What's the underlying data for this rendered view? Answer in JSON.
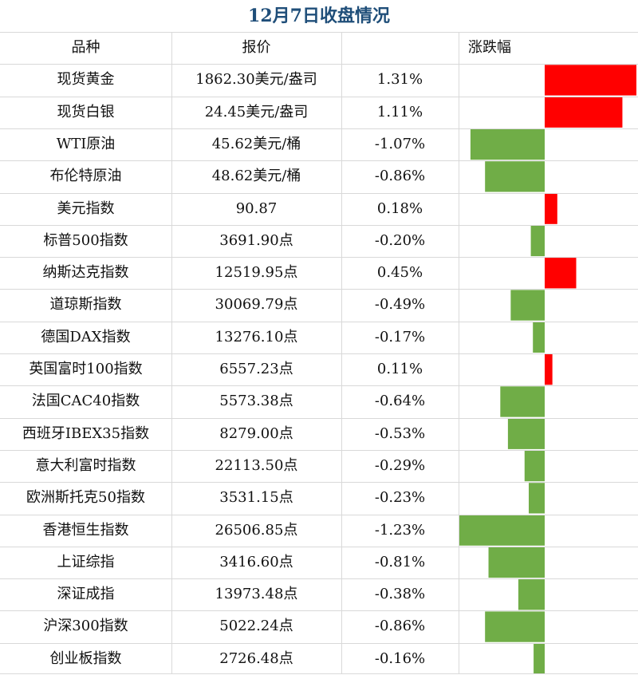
{
  "title": "12月7日收盘情况",
  "header": {
    "name": "品种",
    "price": "报价",
    "change": "涨跌幅"
  },
  "colors": {
    "up": "#ff0000",
    "down": "#70ad47",
    "title": "#1f4e79",
    "grid": "#d9d9d9"
  },
  "chart_data": {
    "type": "table",
    "columns": [
      "品种",
      "报价",
      "涨跌幅"
    ],
    "rows": [
      {
        "name": "现货黄金",
        "price": "1862.30美元/盎司",
        "pct_label": "1.31%",
        "value": 1.31
      },
      {
        "name": "现货白银",
        "price": "24.45美元/盎司",
        "pct_label": "1.11%",
        "value": 1.11
      },
      {
        "name": "WTI原油",
        "price": "45.62美元/桶",
        "pct_label": "-1.07%",
        "value": -1.07
      },
      {
        "name": "布伦特原油",
        "price": "48.62美元/桶",
        "pct_label": "-0.86%",
        "value": -0.86
      },
      {
        "name": "美元指数",
        "price": "90.87",
        "pct_label": "0.18%",
        "value": 0.18
      },
      {
        "name": "标普500指数",
        "price": "3691.90点",
        "pct_label": "-0.20%",
        "value": -0.2
      },
      {
        "name": "纳斯达克指数",
        "price": "12519.95点",
        "pct_label": "0.45%",
        "value": 0.45
      },
      {
        "name": "道琼斯指数",
        "price": "30069.79点",
        "pct_label": "-0.49%",
        "value": -0.49
      },
      {
        "name": "德国DAX指数",
        "price": "13276.10点",
        "pct_label": "-0.17%",
        "value": -0.17
      },
      {
        "name": "英国富时100指数",
        "price": "6557.23点",
        "pct_label": "0.11%",
        "value": 0.11
      },
      {
        "name": "法国CAC40指数",
        "price": "5573.38点",
        "pct_label": "-0.64%",
        "value": -0.64
      },
      {
        "name": "西班牙IBEX35指数",
        "price": "8279.00点",
        "pct_label": "-0.53%",
        "value": -0.53
      },
      {
        "name": "意大利富时指数",
        "price": "22113.50点",
        "pct_label": "-0.29%",
        "value": -0.29
      },
      {
        "name": "欧洲斯托克50指数",
        "price": "3531.15点",
        "pct_label": "-0.23%",
        "value": -0.23
      },
      {
        "name": "香港恒生指数",
        "price": "26506.85点",
        "pct_label": "-1.23%",
        "value": -1.23
      },
      {
        "name": "上证综指",
        "price": "3416.60点",
        "pct_label": "-0.81%",
        "value": -0.81
      },
      {
        "name": "深证成指",
        "price": "13973.48点",
        "pct_label": "-0.38%",
        "value": -0.38
      },
      {
        "name": "沪深300指数",
        "price": "5022.24点",
        "pct_label": "-0.86%",
        "value": -0.86
      },
      {
        "name": "创业板指数",
        "price": "2726.48点",
        "pct_label": "-0.16%",
        "value": -0.16
      }
    ],
    "bar_range": [
      -1.23,
      1.31
    ]
  }
}
